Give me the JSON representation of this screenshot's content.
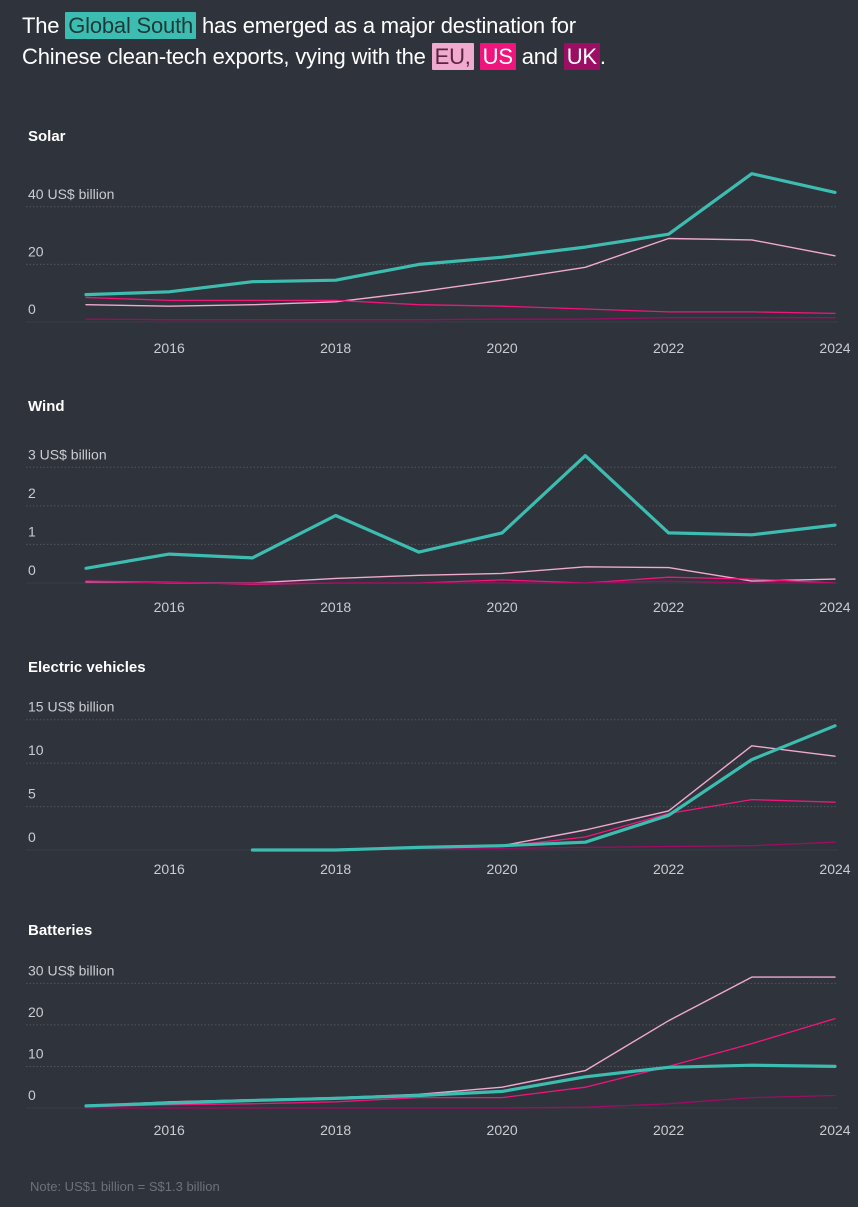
{
  "headline": {
    "part1": "The ",
    "global_south": "Global South",
    "part2": " has emerged as a major destination for",
    "part3": "Chinese clean-tech exports, vying with the ",
    "eu": "EU,",
    "us": "US",
    "and": " and ",
    "uk": "UK",
    "end": "."
  },
  "note": "Note: US$1 billion = S$1.3 billion",
  "colors": {
    "background": "#2f333b",
    "global_south": "#3dbdb1",
    "eu": "#f0a9cf",
    "us": "#f0157d",
    "uk": "#9c0e63",
    "grid": "#50555e",
    "tick": "#c9ccd1"
  },
  "chart_data": [
    {
      "type": "line",
      "title": "Solar",
      "ylim": [
        0,
        50
      ],
      "xlim": [
        2015,
        2024
      ],
      "yticks": [
        0,
        20,
        40
      ],
      "ytick_labels": [
        "0",
        "20",
        "40 US$ billion"
      ],
      "xticks": [
        2016,
        2018,
        2020,
        2022,
        2024
      ],
      "xtick_labels": [
        "2016",
        "2018",
        "2020",
        "2022",
        "2024"
      ],
      "series": [
        {
          "key": "eu",
          "x": [
            2015,
            2016,
            2017,
            2018,
            2019,
            2020,
            2021,
            2022,
            2023,
            2024
          ],
          "y": [
            6,
            5.5,
            6,
            7,
            10.5,
            14.5,
            19,
            29,
            28.5,
            23
          ]
        },
        {
          "key": "us",
          "x": [
            2015,
            2016,
            2017,
            2018,
            2019,
            2020,
            2021,
            2022,
            2023,
            2024
          ],
          "y": [
            8.5,
            7.5,
            7.5,
            7.5,
            6,
            5.5,
            4.5,
            3.5,
            3.5,
            3
          ]
        },
        {
          "key": "uk",
          "x": [
            2015,
            2016,
            2017,
            2018,
            2019,
            2020,
            2021,
            2022,
            2023,
            2024
          ],
          "y": [
            1,
            0.8,
            0.8,
            0.8,
            0.8,
            1,
            1,
            1.5,
            1.5,
            1.5
          ]
        },
        {
          "key": "global_south",
          "x": [
            2015,
            2016,
            2017,
            2018,
            2019,
            2020,
            2021,
            2022,
            2023,
            2024
          ],
          "y": [
            9.5,
            10.5,
            14,
            14.5,
            20,
            22.5,
            26,
            30.5,
            51.5,
            45
          ]
        }
      ]
    },
    {
      "type": "line",
      "title": "Wind",
      "ylim": [
        0,
        3.5
      ],
      "xlim": [
        2015,
        2024
      ],
      "yticks": [
        0,
        1,
        2,
        3
      ],
      "ytick_labels": [
        "0",
        "1",
        "2",
        "3 US$ billion"
      ],
      "xticks": [
        2016,
        2018,
        2020,
        2022,
        2024
      ],
      "xtick_labels": [
        "2016",
        "2018",
        "2020",
        "2022",
        "2024"
      ],
      "series": [
        {
          "key": "eu",
          "x": [
            2015,
            2016,
            2017,
            2018,
            2019,
            2020,
            2021,
            2022,
            2023,
            2024
          ],
          "y": [
            0.02,
            0,
            0,
            0.12,
            0.2,
            0.25,
            0.42,
            0.4,
            0.05,
            0.1
          ]
        },
        {
          "key": "us",
          "x": [
            2015,
            2016,
            2017,
            2018,
            2019,
            2020,
            2021,
            2022,
            2023,
            2024
          ],
          "y": [
            0.05,
            0.02,
            -0.03,
            0,
            0,
            0.08,
            0,
            0.15,
            0.1,
            0
          ]
        },
        {
          "key": "uk",
          "x": [
            2015,
            2016,
            2017,
            2018,
            2019,
            2020,
            2021,
            2022,
            2023,
            2024
          ],
          "y": [
            0,
            0,
            0,
            0,
            0,
            0,
            0,
            0.05,
            0,
            0
          ]
        },
        {
          "key": "global_south",
          "x": [
            2015,
            2016,
            2017,
            2018,
            2019,
            2020,
            2021,
            2022,
            2023,
            2024
          ],
          "y": [
            0.38,
            0.75,
            0.65,
            1.75,
            0.8,
            1.3,
            3.3,
            1.3,
            1.25,
            1.5
          ]
        }
      ]
    },
    {
      "type": "line",
      "title": "Electric vehicles",
      "ylim": [
        0,
        16
      ],
      "xlim": [
        2015,
        2024
      ],
      "yticks": [
        0,
        5,
        10,
        15
      ],
      "ytick_labels": [
        "0",
        "5",
        "10",
        "15 US$ billion"
      ],
      "xticks": [
        2016,
        2018,
        2020,
        2022,
        2024
      ],
      "xtick_labels": [
        "2016",
        "2018",
        "2020",
        "2022",
        "2024"
      ],
      "series": [
        {
          "key": "eu",
          "x": [
            2017,
            2018,
            2019,
            2020,
            2021,
            2022,
            2023,
            2024
          ],
          "y": [
            0,
            0,
            0.3,
            0.5,
            2.3,
            4.5,
            12,
            10.8
          ]
        },
        {
          "key": "us",
          "x": [
            2017,
            2018,
            2019,
            2020,
            2021,
            2022,
            2023,
            2024
          ],
          "y": [
            0,
            0,
            0.2,
            0.4,
            1.5,
            4.2,
            5.8,
            5.5
          ]
        },
        {
          "key": "uk",
          "x": [
            2017,
            2018,
            2019,
            2020,
            2021,
            2022,
            2023,
            2024
          ],
          "y": [
            0,
            0,
            0.1,
            0.2,
            0.3,
            0.4,
            0.5,
            0.9
          ]
        },
        {
          "key": "global_south",
          "x": [
            2017,
            2018,
            2019,
            2020,
            2021,
            2022,
            2023,
            2024
          ],
          "y": [
            0,
            0,
            0.3,
            0.5,
            0.9,
            4,
            10.4,
            14.3
          ]
        }
      ]
    },
    {
      "type": "line",
      "title": "Batteries",
      "ylim": [
        0,
        32
      ],
      "xlim": [
        2015,
        2024
      ],
      "yticks": [
        0,
        10,
        20,
        30
      ],
      "ytick_labels": [
        "0",
        "10",
        "20",
        "30  US$ billion"
      ],
      "xticks": [
        2016,
        2018,
        2020,
        2022,
        2024
      ],
      "xtick_labels": [
        "2016",
        "2018",
        "2020",
        "2022",
        "2024"
      ],
      "series": [
        {
          "key": "eu",
          "x": [
            2015,
            2016,
            2017,
            2018,
            2019,
            2020,
            2021,
            2022,
            2023,
            2024
          ],
          "y": [
            0.5,
            1.5,
            2,
            2.5,
            3.3,
            5,
            9,
            21,
            31.5,
            31.5
          ]
        },
        {
          "key": "us",
          "x": [
            2015,
            2016,
            2017,
            2018,
            2019,
            2020,
            2021,
            2022,
            2023,
            2024
          ],
          "y": [
            0.3,
            0.8,
            1,
            1.5,
            2.5,
            2.5,
            5,
            10,
            15.5,
            21.5
          ]
        },
        {
          "key": "uk",
          "x": [
            2015,
            2016,
            2017,
            2018,
            2019,
            2020,
            2021,
            2022,
            2023,
            2024
          ],
          "y": [
            0,
            0,
            0,
            0,
            0,
            0,
            0.2,
            1,
            2.5,
            3
          ]
        },
        {
          "key": "global_south",
          "x": [
            2015,
            2016,
            2017,
            2018,
            2019,
            2020,
            2021,
            2022,
            2023,
            2024
          ],
          "y": [
            0.5,
            1.2,
            1.8,
            2.3,
            3,
            4,
            7.5,
            9.8,
            10.3,
            10
          ]
        }
      ]
    }
  ]
}
